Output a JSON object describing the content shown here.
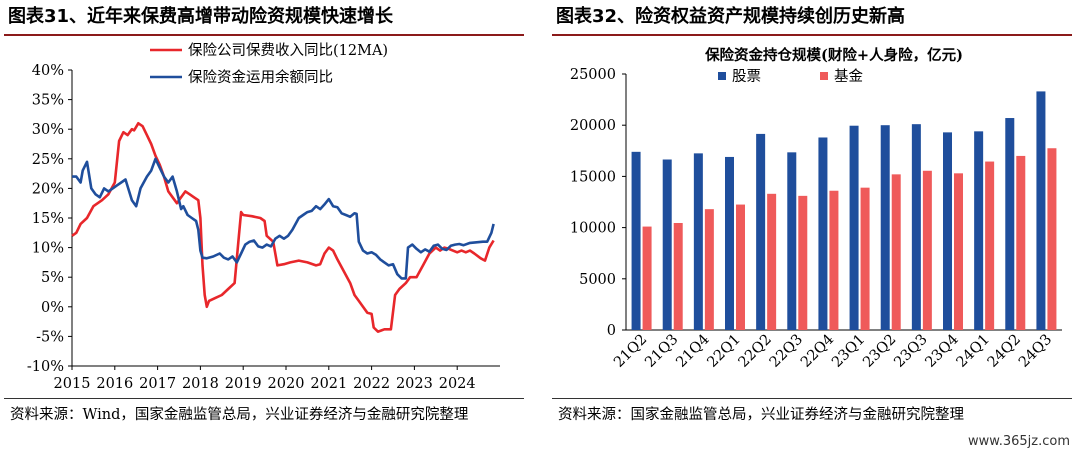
{
  "left_panel": {
    "figure_title": "图表31、近年来保费高增带动险资规模快速增长",
    "source_note": "资料来源：Wind，国家金融监管总局，兴业证券经济与金融研究院整理"
  },
  "right_panel": {
    "figure_title": "图表32、险资权益资产规模持续创历史新高",
    "source_note": "资料来源：国家金融监管总局，兴业证券经济与金融研究院整理"
  },
  "watermark": "www.365jz.com",
  "chart_data": [
    {
      "type": "line",
      "title": "",
      "xlabel": "",
      "ylabel": "",
      "x_tick_labels": [
        "2015",
        "2016",
        "2017",
        "2018",
        "2019",
        "2020",
        "2021",
        "2022",
        "2023",
        "2024"
      ],
      "y_tick_labels": [
        "40%",
        "35%",
        "30%",
        "25%",
        "20%",
        "15%",
        "10%",
        "5%",
        "0%",
        "-5%",
        "-10%"
      ],
      "ylim": [
        -10,
        40
      ],
      "y_unit": "%",
      "legend_position": "top",
      "grid": false,
      "series": [
        {
          "name": "保险公司保费收入同比(12MA)",
          "color": "#e8272b",
          "points": [
            [
              2015.0,
              12
            ],
            [
              2015.1,
              12.5
            ],
            [
              2015.2,
              14
            ],
            [
              2015.35,
              15
            ],
            [
              2015.5,
              17
            ],
            [
              2015.7,
              18
            ],
            [
              2015.85,
              19
            ],
            [
              2016.0,
              21
            ],
            [
              2016.1,
              28
            ],
            [
              2016.2,
              29.5
            ],
            [
              2016.3,
              29
            ],
            [
              2016.4,
              30
            ],
            [
              2016.45,
              29.8
            ],
            [
              2016.55,
              31
            ],
            [
              2016.65,
              30.5
            ],
            [
              2016.75,
              29
            ],
            [
              2016.85,
              27.5
            ],
            [
              2016.95,
              25.5
            ],
            [
              2017.05,
              24
            ],
            [
              2017.15,
              22
            ],
            [
              2017.25,
              19.5
            ],
            [
              2017.35,
              18.5
            ],
            [
              2017.45,
              17.5
            ],
            [
              2017.55,
              18.5
            ],
            [
              2017.65,
              19.5
            ],
            [
              2017.75,
              19
            ],
            [
              2017.85,
              18.5
            ],
            [
              2017.95,
              18
            ],
            [
              2018.0,
              15
            ],
            [
              2018.05,
              7
            ],
            [
              2018.1,
              2
            ],
            [
              2018.15,
              0
            ],
            [
              2018.2,
              1
            ],
            [
              2018.35,
              1.5
            ],
            [
              2018.5,
              2
            ],
            [
              2018.65,
              3
            ],
            [
              2018.8,
              4
            ],
            [
              2018.9,
              12
            ],
            [
              2018.95,
              16
            ],
            [
              2019.0,
              15.5
            ],
            [
              2019.2,
              15.3
            ],
            [
              2019.4,
              15
            ],
            [
              2019.5,
              14.5
            ],
            [
              2019.55,
              12
            ],
            [
              2019.7,
              11
            ],
            [
              2019.8,
              7
            ],
            [
              2019.95,
              7.2
            ],
            [
              2020.1,
              7.5
            ],
            [
              2020.3,
              7.8
            ],
            [
              2020.5,
              7.5
            ],
            [
              2020.7,
              7
            ],
            [
              2020.8,
              7.2
            ],
            [
              2020.9,
              9
            ],
            [
              2021.0,
              10
            ],
            [
              2021.1,
              9.5
            ],
            [
              2021.2,
              8
            ],
            [
              2021.35,
              6
            ],
            [
              2021.5,
              4
            ],
            [
              2021.6,
              2
            ],
            [
              2021.7,
              1
            ],
            [
              2021.8,
              0
            ],
            [
              2021.9,
              -1
            ],
            [
              2022.0,
              -1.2
            ],
            [
              2022.05,
              -3.5
            ],
            [
              2022.15,
              -4.2
            ],
            [
              2022.3,
              -3.8
            ],
            [
              2022.45,
              -3.8
            ],
            [
              2022.55,
              2
            ],
            [
              2022.65,
              3
            ],
            [
              2022.8,
              4
            ],
            [
              2022.9,
              5
            ],
            [
              2023.05,
              5
            ],
            [
              2023.2,
              7
            ],
            [
              2023.35,
              9
            ],
            [
              2023.5,
              10
            ],
            [
              2023.6,
              9.5
            ],
            [
              2023.7,
              10
            ],
            [
              2023.8,
              9.8
            ],
            [
              2023.9,
              9.5
            ],
            [
              2024.0,
              9.2
            ],
            [
              2024.1,
              9.5
            ],
            [
              2024.2,
              9.2
            ],
            [
              2024.3,
              9.5
            ],
            [
              2024.4,
              9
            ],
            [
              2024.55,
              8.2
            ],
            [
              2024.65,
              7.8
            ],
            [
              2024.75,
              10
            ],
            [
              2024.85,
              11.2
            ]
          ]
        },
        {
          "name": "保险资金运用余额同比",
          "color": "#1f4e9c",
          "points": [
            [
              2015.0,
              22
            ],
            [
              2015.1,
              22
            ],
            [
              2015.2,
              21
            ],
            [
              2015.25,
              23
            ],
            [
              2015.35,
              24.5
            ],
            [
              2015.45,
              20
            ],
            [
              2015.55,
              19
            ],
            [
              2015.65,
              18.5
            ],
            [
              2015.75,
              20
            ],
            [
              2015.85,
              19.5
            ],
            [
              2015.95,
              20
            ],
            [
              2016.05,
              20.5
            ],
            [
              2016.15,
              21
            ],
            [
              2016.25,
              21.5
            ],
            [
              2016.4,
              18
            ],
            [
              2016.5,
              17
            ],
            [
              2016.6,
              20
            ],
            [
              2016.75,
              22
            ],
            [
              2016.85,
              23
            ],
            [
              2016.95,
              25
            ],
            [
              2017.05,
              23.5
            ],
            [
              2017.15,
              22
            ],
            [
              2017.25,
              21
            ],
            [
              2017.35,
              22
            ],
            [
              2017.45,
              19.5
            ],
            [
              2017.55,
              16.5
            ],
            [
              2017.6,
              17
            ],
            [
              2017.7,
              15.5
            ],
            [
              2017.8,
              15
            ],
            [
              2017.9,
              14.5
            ],
            [
              2017.95,
              13
            ],
            [
              2018.0,
              9.5
            ],
            [
              2018.05,
              8.3
            ],
            [
              2018.15,
              8.2
            ],
            [
              2018.3,
              8.5
            ],
            [
              2018.45,
              9
            ],
            [
              2018.55,
              8.3
            ],
            [
              2018.65,
              8
            ],
            [
              2018.75,
              8.5
            ],
            [
              2018.85,
              7.5
            ],
            [
              2018.95,
              9
            ],
            [
              2019.05,
              10.5
            ],
            [
              2019.15,
              11
            ],
            [
              2019.25,
              11.2
            ],
            [
              2019.35,
              10.2
            ],
            [
              2019.45,
              10
            ],
            [
              2019.55,
              10.5
            ],
            [
              2019.65,
              10.2
            ],
            [
              2019.75,
              11.5
            ],
            [
              2019.85,
              12
            ],
            [
              2019.95,
              11.5
            ],
            [
              2020.05,
              12
            ],
            [
              2020.15,
              13
            ],
            [
              2020.3,
              15
            ],
            [
              2020.4,
              15.5
            ],
            [
              2020.5,
              16
            ],
            [
              2020.6,
              16.2
            ],
            [
              2020.7,
              17
            ],
            [
              2020.8,
              16.5
            ],
            [
              2020.9,
              17.3
            ],
            [
              2021.0,
              18.2
            ],
            [
              2021.1,
              17
            ],
            [
              2021.2,
              16.8
            ],
            [
              2021.3,
              15.8
            ],
            [
              2021.4,
              15.5
            ],
            [
              2021.5,
              15.2
            ],
            [
              2021.6,
              15.8
            ],
            [
              2021.65,
              15.7
            ],
            [
              2021.7,
              11
            ],
            [
              2021.8,
              9.5
            ],
            [
              2021.9,
              9
            ],
            [
              2022.0,
              9.2
            ],
            [
              2022.1,
              8.8
            ],
            [
              2022.2,
              8
            ],
            [
              2022.3,
              7.5
            ],
            [
              2022.4,
              7
            ],
            [
              2022.5,
              7.2
            ],
            [
              2022.6,
              5.5
            ],
            [
              2022.7,
              4.8
            ],
            [
              2022.8,
              4.8
            ],
            [
              2022.85,
              10
            ],
            [
              2022.95,
              10.5
            ],
            [
              2023.05,
              9.8
            ],
            [
              2023.15,
              9.2
            ],
            [
              2023.25,
              9.7
            ],
            [
              2023.35,
              9.3
            ],
            [
              2023.45,
              10.3
            ],
            [
              2023.55,
              10.5
            ],
            [
              2023.65,
              9.8
            ],
            [
              2023.75,
              9.6
            ],
            [
              2023.85,
              10.3
            ],
            [
              2023.95,
              10.5
            ],
            [
              2024.05,
              10.6
            ],
            [
              2024.15,
              10.4
            ],
            [
              2024.3,
              10.8
            ],
            [
              2024.45,
              10.9
            ],
            [
              2024.6,
              11
            ],
            [
              2024.7,
              11
            ],
            [
              2024.8,
              12.5
            ],
            [
              2024.85,
              14
            ]
          ]
        }
      ]
    },
    {
      "type": "bar",
      "title": "保险资金持仓规模(财险+人身险，亿元)",
      "xlabel": "",
      "ylabel": "",
      "ylim": [
        0,
        25000
      ],
      "y_tick_labels": [
        "25000",
        "20000",
        "15000",
        "10000",
        "5000",
        "0"
      ],
      "categories": [
        "21Q2",
        "21Q3",
        "21Q4",
        "22Q1",
        "22Q2",
        "22Q3",
        "22Q4",
        "23Q1",
        "23Q2",
        "23Q3",
        "23Q4",
        "24Q1",
        "24Q2",
        "24Q3"
      ],
      "legend_position": "top-left",
      "grid": false,
      "series": [
        {
          "name": "股票",
          "color": "#1f4e9c",
          "values": [
            17400,
            16650,
            17250,
            16900,
            19150,
            17350,
            18800,
            19950,
            20000,
            20100,
            19300,
            19400,
            20700,
            23300
          ]
        },
        {
          "name": "基金",
          "color": "#ef5a5a",
          "values": [
            10100,
            10450,
            11800,
            12250,
            13300,
            13100,
            13600,
            13900,
            15200,
            15550,
            15300,
            16450,
            17000,
            17750
          ]
        }
      ]
    }
  ]
}
